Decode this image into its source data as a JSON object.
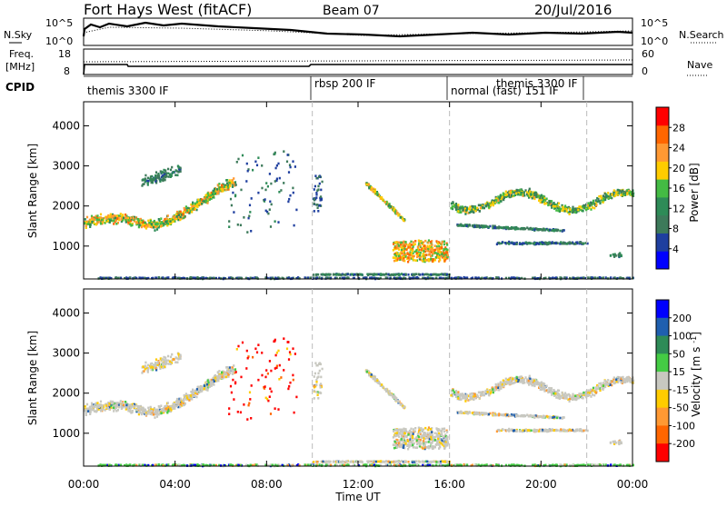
{
  "header": {
    "station": "Fort Hays West (fitACF)",
    "beam": "Beam 07",
    "date": "20/Jul/2016"
  },
  "top_panel": {
    "left_label": "N.Sky",
    "left_ticks": [
      "10^5",
      "10^0"
    ],
    "right_label": "N.Search",
    "right_ticks": [
      "10^5",
      "10^0"
    ]
  },
  "freq_panel": {
    "left_label_1": "Freq.",
    "left_label_2": "[MHz]",
    "left_ticks": [
      "18",
      "8"
    ],
    "right_label": "Nave",
    "right_ticks": [
      "60",
      "0"
    ]
  },
  "cpid": {
    "label": "CPID",
    "modes": [
      "themis 3300 IF",
      "rbsp 200 IF",
      "normal (fast) 151 IF",
      "themis 3300 IF"
    ]
  },
  "colors": {
    "power": [
      "#0000ff",
      "#1f3f9f",
      "#3d7a5a",
      "#2e8b57",
      "#44bb44",
      "#ffcc00",
      "#ff9933",
      "#ff6600",
      "#ff0000"
    ],
    "velocity": [
      "#0000ff",
      "#1f5faf",
      "#2e8b57",
      "#44cc44",
      "#c8c8c0",
      "#ffcc00",
      "#ff9933",
      "#ff6600",
      "#ff0000"
    ]
  },
  "chart_data": [
    {
      "type": "heatmap",
      "name": "power",
      "xlabel": "Time UT",
      "ylabel": "Slant Range [km]",
      "x_ticks": [
        "00:00",
        "04:00",
        "08:00",
        "12:00",
        "16:00",
        "20:00",
        "00:00"
      ],
      "y_ticks": [
        "1000",
        "2000",
        "3000",
        "4000"
      ],
      "xlim": [
        0,
        24
      ],
      "ylim": [
        180,
        4600
      ],
      "grid": false,
      "colorbar_label": "Power [dB]",
      "colorbar_ticks": [
        "4",
        "8",
        "12",
        "16",
        "20",
        "24",
        "28"
      ],
      "colorbar_range": [
        0,
        32
      ],
      "mode_boundaries_hours": [
        10,
        16,
        22
      ]
    },
    {
      "type": "heatmap",
      "name": "velocity",
      "xlabel": "Time UT",
      "ylabel": "Slant Range [km]",
      "x_ticks": [
        "00:00",
        "04:00",
        "08:00",
        "12:00",
        "16:00",
        "20:00",
        "00:00"
      ],
      "y_ticks": [
        "1000",
        "2000",
        "3000",
        "4000"
      ],
      "xlim": [
        0,
        24
      ],
      "ylim": [
        180,
        4600
      ],
      "grid": false,
      "colorbar_label": "Velocity [m s^-1]",
      "colorbar_ticks": [
        "200",
        "100",
        "50",
        "15",
        "-15",
        "-50",
        "-100",
        "-200"
      ],
      "mode_boundaries_hours": [
        10,
        16,
        22
      ]
    }
  ]
}
